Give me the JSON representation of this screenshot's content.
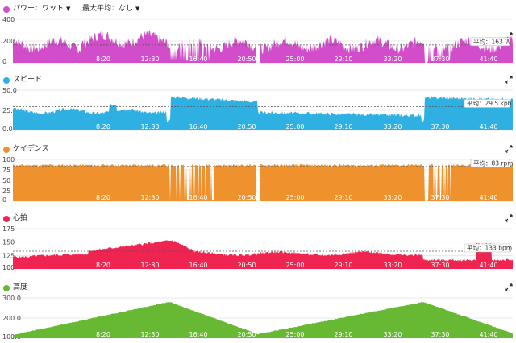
{
  "header": {
    "max_avg_label": "最大平均：なし",
    "max_avg_caret": "▼"
  },
  "x_ticks": [
    "8:20",
    "12:30",
    "16:40",
    "20:50",
    "25:00",
    "29:10",
    "33:20",
    "37:30",
    "41:40"
  ],
  "panels": [
    {
      "id": "power",
      "title": "パワー：ワット",
      "has_dropdown": true,
      "caret": "▼",
      "color": "#d24dc9",
      "icon": "expand-icon",
      "y_ticks": [
        "400",
        "200",
        "0"
      ],
      "average_label": "平均：163 W",
      "avg_fraction": 0.41
    },
    {
      "id": "speed",
      "title": "スピード",
      "color": "#2eb0e3",
      "icon": "expand-icon",
      "y_ticks": [
        "50.0",
        "25.0",
        "0.0"
      ],
      "average_label": "平均：29.5 kph",
      "avg_fraction": 0.59
    },
    {
      "id": "cadence",
      "title": "ケイデンス",
      "color": "#ef922d",
      "icon": "expand-icon",
      "y_ticks": [
        "100",
        "75",
        "50",
        "25",
        "0"
      ],
      "average_label": "平均：83 rpm",
      "avg_fraction": 0.83
    },
    {
      "id": "heart_rate",
      "title": "心拍",
      "color": "#ef2450",
      "icon": "expand-icon",
      "y_ticks": [
        "175",
        "150",
        "125",
        "100"
      ],
      "average_label": "平均：133 bpm",
      "avg_fraction": 0.44
    },
    {
      "id": "elevation",
      "title": "高度",
      "color": "#67b832",
      "icon": "expand-icon",
      "y_ticks": [
        "300.0",
        "200.0",
        "100.0"
      ]
    }
  ]
}
